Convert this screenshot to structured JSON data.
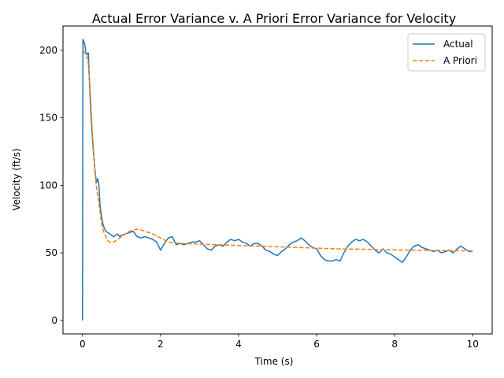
{
  "chart_data": {
    "type": "line",
    "title": "Actual Error Variance v. A Priori Error Variance for Velocity",
    "xlabel": "Time (s)",
    "ylabel": "Velocity (ft/s)",
    "xlim": [
      -0.5,
      10.5
    ],
    "ylim": [
      -10,
      218
    ],
    "xticks": [
      0,
      2,
      4,
      6,
      8,
      10
    ],
    "yticks": [
      0,
      50,
      100,
      150,
      200
    ],
    "grid": false,
    "legend_position": "top-right",
    "series": [
      {
        "name": "Actual",
        "color": "#1f77b4",
        "style": "solid",
        "x": [
          0,
          0.01,
          0.03,
          0.06,
          0.09,
          0.12,
          0.15,
          0.18,
          0.21,
          0.24,
          0.27,
          0.3,
          0.33,
          0.36,
          0.39,
          0.42,
          0.45,
          0.48,
          0.52,
          0.56,
          0.6,
          0.65,
          0.7,
          0.75,
          0.8,
          0.85,
          0.9,
          0.95,
          1.0,
          1.1,
          1.2,
          1.3,
          1.4,
          1.5,
          1.6,
          1.7,
          1.8,
          1.9,
          2.0,
          2.1,
          2.2,
          2.3,
          2.4,
          2.5,
          2.6,
          2.7,
          2.8,
          2.9,
          3.0,
          3.1,
          3.2,
          3.3,
          3.4,
          3.5,
          3.6,
          3.7,
          3.8,
          3.9,
          4.0,
          4.1,
          4.2,
          4.3,
          4.4,
          4.5,
          4.6,
          4.7,
          4.8,
          4.9,
          5.0,
          5.1,
          5.2,
          5.3,
          5.4,
          5.5,
          5.6,
          5.7,
          5.8,
          5.9,
          6.0,
          6.1,
          6.2,
          6.3,
          6.4,
          6.5,
          6.6,
          6.7,
          6.8,
          6.9,
          7.0,
          7.1,
          7.2,
          7.3,
          7.4,
          7.5,
          7.6,
          7.7,
          7.8,
          7.9,
          8.0,
          8.1,
          8.2,
          8.3,
          8.4,
          8.5,
          8.6,
          8.7,
          8.8,
          8.9,
          9.0,
          9.1,
          9.2,
          9.3,
          9.4,
          9.5,
          9.6,
          9.7,
          9.8,
          9.9,
          10.0
        ],
        "y": [
          0,
          208,
          207,
          204,
          198,
          197,
          198,
          175,
          155,
          140,
          128,
          118,
          108,
          102,
          105,
          100,
          85,
          78,
          72,
          68,
          66,
          65,
          64,
          63,
          62,
          63,
          64,
          62,
          63,
          64,
          65,
          66,
          62,
          61,
          62,
          61,
          60,
          58,
          52,
          57,
          61,
          62,
          56,
          57,
          56,
          57,
          58,
          58,
          59,
          56,
          53,
          52,
          55,
          56,
          55,
          58,
          60,
          59,
          60,
          58,
          57,
          55,
          57,
          57,
          55,
          52,
          51,
          49,
          48,
          51,
          53,
          56,
          58,
          59,
          61,
          59,
          56,
          54,
          53,
          48,
          45,
          44,
          44,
          45,
          44,
          50,
          55,
          58,
          60,
          59,
          60,
          58,
          55,
          52,
          50,
          53,
          50,
          49,
          47,
          45,
          43,
          47,
          52,
          55,
          56,
          54,
          53,
          52,
          51,
          52,
          50,
          51,
          52,
          50,
          53,
          55,
          53,
          51,
          51
        ]
      },
      {
        "name": "A Priori",
        "color": "#ff7f0e",
        "style": "dashed",
        "x": [
          0.02,
          0.05,
          0.1,
          0.15,
          0.2,
          0.25,
          0.3,
          0.35,
          0.4,
          0.45,
          0.5,
          0.55,
          0.6,
          0.65,
          0.7,
          0.75,
          0.8,
          0.9,
          1.0,
          1.1,
          1.2,
          1.3,
          1.4,
          1.5,
          1.6,
          1.8,
          2.0,
          2.2,
          2.5,
          3.0,
          3.5,
          4.0,
          4.5,
          5.0,
          5.5,
          6.0,
          6.5,
          7.0,
          7.5,
          8.0,
          8.5,
          9.0,
          9.5,
          10.0
        ],
        "y": [
          200,
          198,
          197,
          190,
          168,
          140,
          118,
          100,
          90,
          80,
          70,
          65,
          62,
          59,
          58,
          58,
          58,
          60,
          62,
          64,
          66,
          67,
          67.5,
          67,
          66,
          64,
          61,
          58,
          57,
          56.5,
          56,
          55.5,
          55,
          54.5,
          54,
          53.5,
          53,
          52.8,
          52.5,
          52.2,
          52,
          51.8,
          51.6,
          51.5
        ]
      }
    ]
  }
}
